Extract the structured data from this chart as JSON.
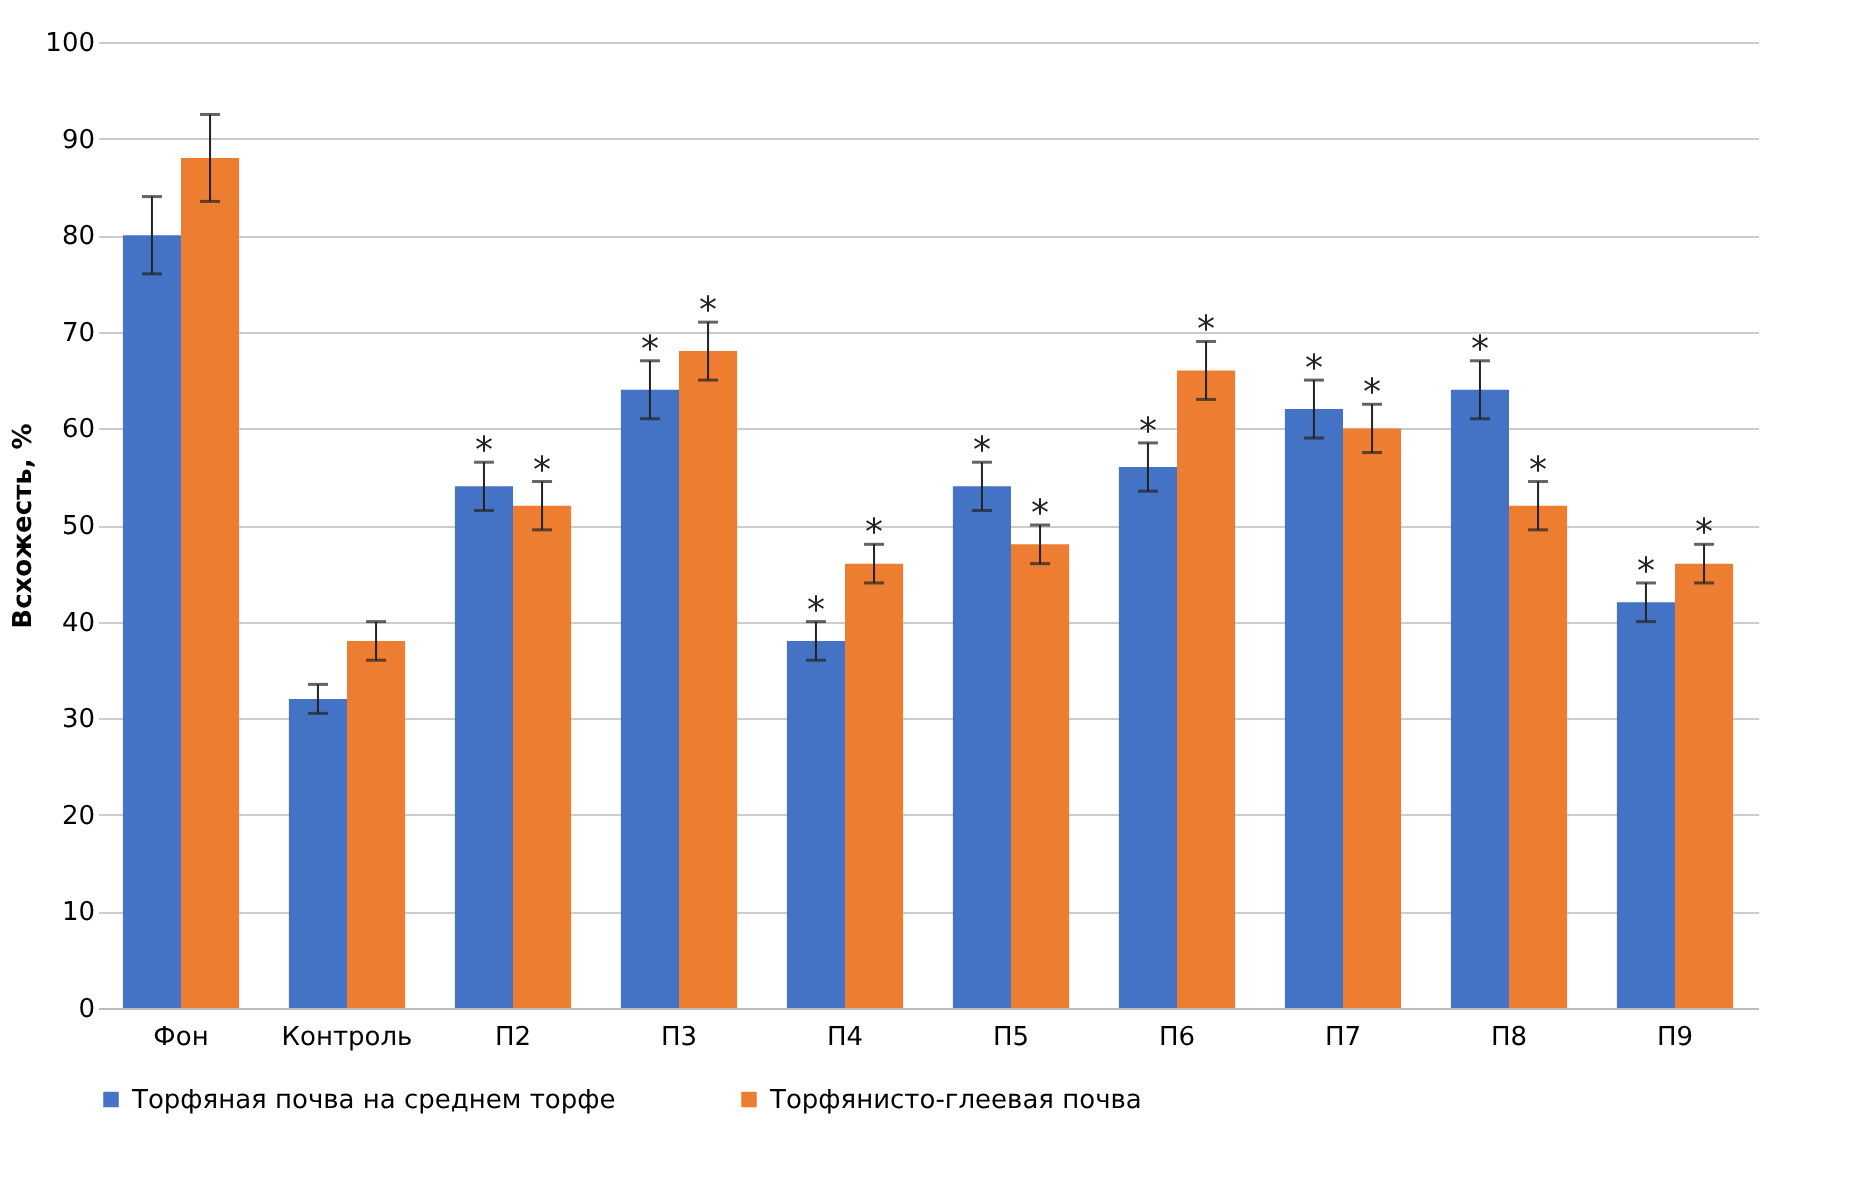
{
  "chart_data": {
    "type": "bar",
    "ylabel": "Всхожесть, %",
    "categories": [
      "Фон",
      "Контроль",
      "П2",
      "П3",
      "П4",
      "П5",
      "П6",
      "П7",
      "П8",
      "П9"
    ],
    "series": [
      {
        "name": "Торфяная почва на среднем торфе",
        "color": "#4472c4",
        "values": [
          80,
          32,
          54,
          64,
          38,
          54,
          56,
          62,
          64,
          42
        ],
        "errors": [
          4,
          1.5,
          2.5,
          3,
          2,
          2.5,
          2.5,
          3,
          3,
          2
        ]
      },
      {
        "name": "Торфянисто-глеевая почва",
        "color": "#ed7d31",
        "values": [
          88,
          38,
          52,
          68,
          46,
          48,
          66,
          60,
          52,
          46
        ],
        "errors": [
          4.5,
          2,
          2.5,
          3,
          2,
          2,
          3,
          2.5,
          2.5,
          2
        ]
      }
    ],
    "annotations": [
      {
        "text": "*",
        "x": "П2",
        "y": 54
      },
      {
        "text": "*",
        "x": "П2",
        "y": 52
      },
      {
        "text": "*",
        "x": "П3",
        "y": 64
      },
      {
        "text": "*",
        "x": "П3",
        "y": 68
      },
      {
        "text": "*",
        "x": "П4",
        "y": 38
      },
      {
        "text": "*",
        "x": "П4",
        "y": 46
      },
      {
        "text": "*",
        "x": "П5",
        "y": 54
      },
      {
        "text": "*",
        "x": "П5",
        "y": 48
      },
      {
        "text": "*",
        "x": "П6",
        "y": 56
      },
      {
        "text": "*",
        "x": "П6",
        "y": 66
      },
      {
        "text": "*",
        "x": "П7",
        "y": 62
      },
      {
        "text": "*",
        "x": "П7",
        "y": 60
      },
      {
        "text": "*",
        "x": "П8",
        "y": 64
      },
      {
        "text": "*",
        "x": "П8",
        "y": 52
      },
      {
        "text": "*",
        "x": "П9",
        "y": 42
      },
      {
        "text": "*",
        "x": "П9",
        "y": 46
      }
    ],
    "ylim": [
      0,
      100
    ],
    "yticks": [
      0,
      10,
      20,
      30,
      40,
      50,
      60,
      70,
      80,
      90,
      100
    ],
    "grid": "y",
    "legend": "bottom"
  }
}
